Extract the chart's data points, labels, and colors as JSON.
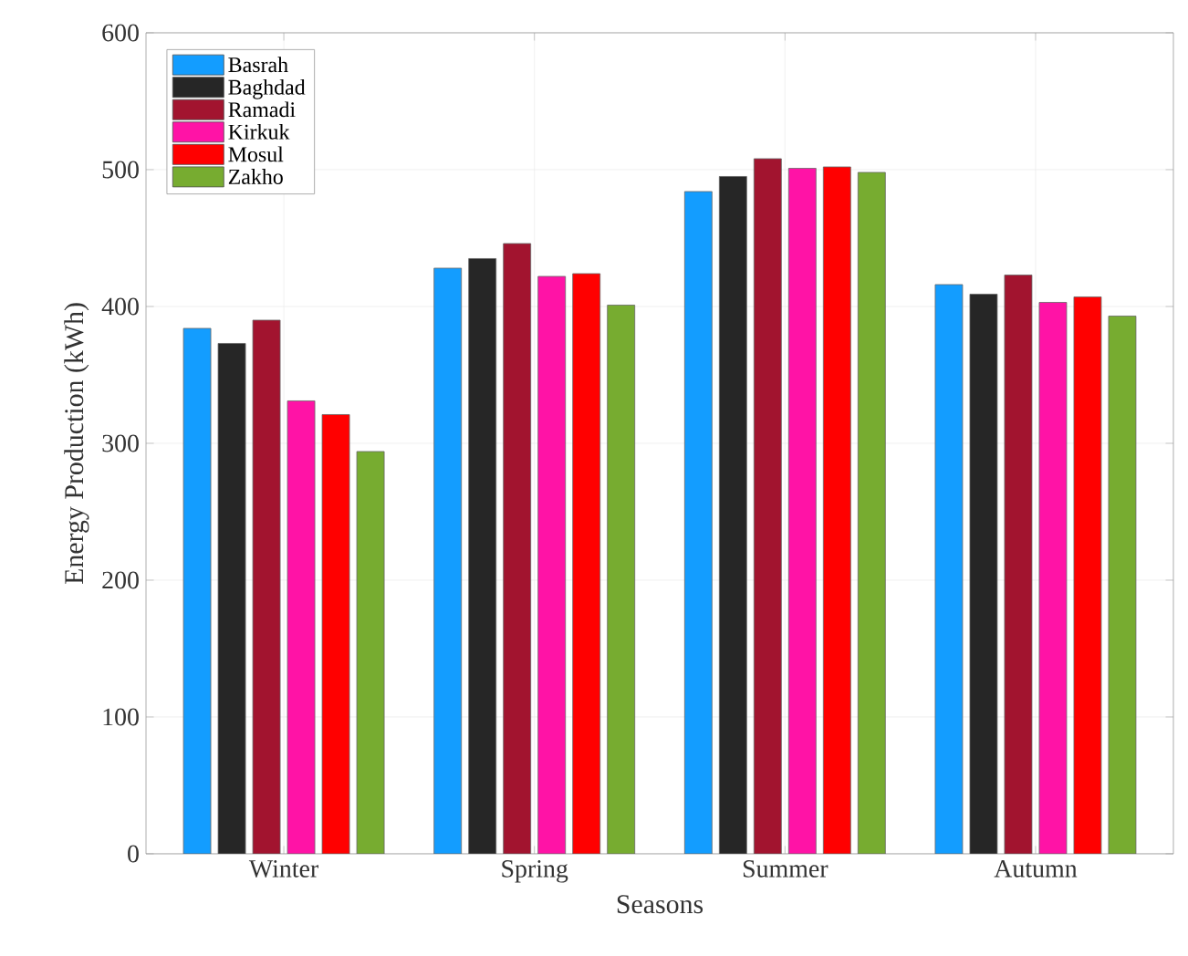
{
  "chart_data": {
    "type": "bar",
    "xlabel": "Seasons",
    "ylabel": "Energy Production (kWh)",
    "categories": [
      "Winter",
      "Spring",
      "Summer",
      "Autumn"
    ],
    "series": [
      {
        "name": "Basrah",
        "color": "#139dff",
        "values": [
          384,
          428,
          484,
          416
        ]
      },
      {
        "name": "Baghdad",
        "color": "#262626",
        "values": [
          373,
          435,
          495,
          409
        ]
      },
      {
        "name": "Ramadi",
        "color": "#a2142f",
        "values": [
          390,
          446,
          508,
          423
        ]
      },
      {
        "name": "Kirkuk",
        "color": "#ff13a6",
        "values": [
          331,
          422,
          501,
          403
        ]
      },
      {
        "name": "Mosul",
        "color": "#ff0000",
        "values": [
          321,
          424,
          502,
          407
        ]
      },
      {
        "name": "Zakho",
        "color": "#77ac30",
        "values": [
          294,
          401,
          498,
          393
        ]
      }
    ],
    "ylim": [
      0,
      600
    ],
    "yticks": [
      0,
      100,
      200,
      300,
      400,
      500,
      600
    ],
    "grid": true,
    "legend": "top left"
  }
}
